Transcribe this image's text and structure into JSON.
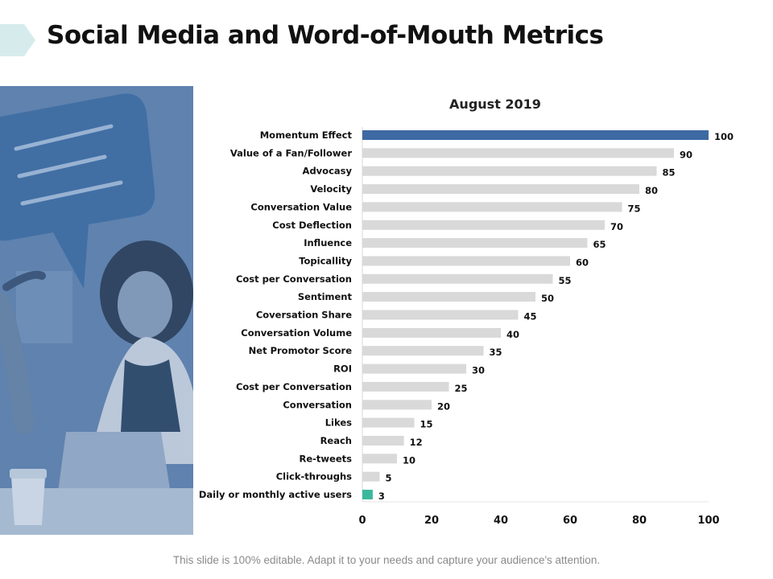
{
  "title": "Social Media and Word-of-Mouth Metrics",
  "footer": "This slide is 100% editable. Adapt it to your needs and capture your audience's attention.",
  "colors": {
    "highlight_top": "#3d6aa3",
    "highlight_bottom": "#3bb89b",
    "bar_default": "#d9d9d9",
    "photo_tint": "#5b7fad"
  },
  "photo": {
    "icon": "speech-bubble-icon"
  },
  "chart_data": {
    "type": "bar",
    "orientation": "horizontal",
    "title": "August 2019",
    "categories": [
      "Momentum Effect",
      "Value of a Fan/Follower",
      "Advocasy",
      "Velocity",
      "Conversation Value",
      "Cost Deflection",
      "Influence",
      "Topicallity",
      "Cost per Conversation",
      "Sentiment",
      "Coversation Share",
      "Conversation Volume",
      "Net Promotor Score",
      "ROI",
      "Cost per Conversation",
      "Conversation",
      "Likes",
      "Reach",
      "Re-tweets",
      "Click-throughs",
      "Daily or monthly active users"
    ],
    "values": [
      100,
      90,
      85,
      80,
      75,
      70,
      65,
      60,
      55,
      50,
      45,
      40,
      35,
      30,
      25,
      20,
      15,
      12,
      10,
      5,
      3
    ],
    "xlim": [
      0,
      100
    ],
    "xticks": [
      0,
      20,
      40,
      60,
      80,
      100
    ],
    "xlabel": "",
    "ylabel": "",
    "grid": false,
    "legend": "none"
  }
}
